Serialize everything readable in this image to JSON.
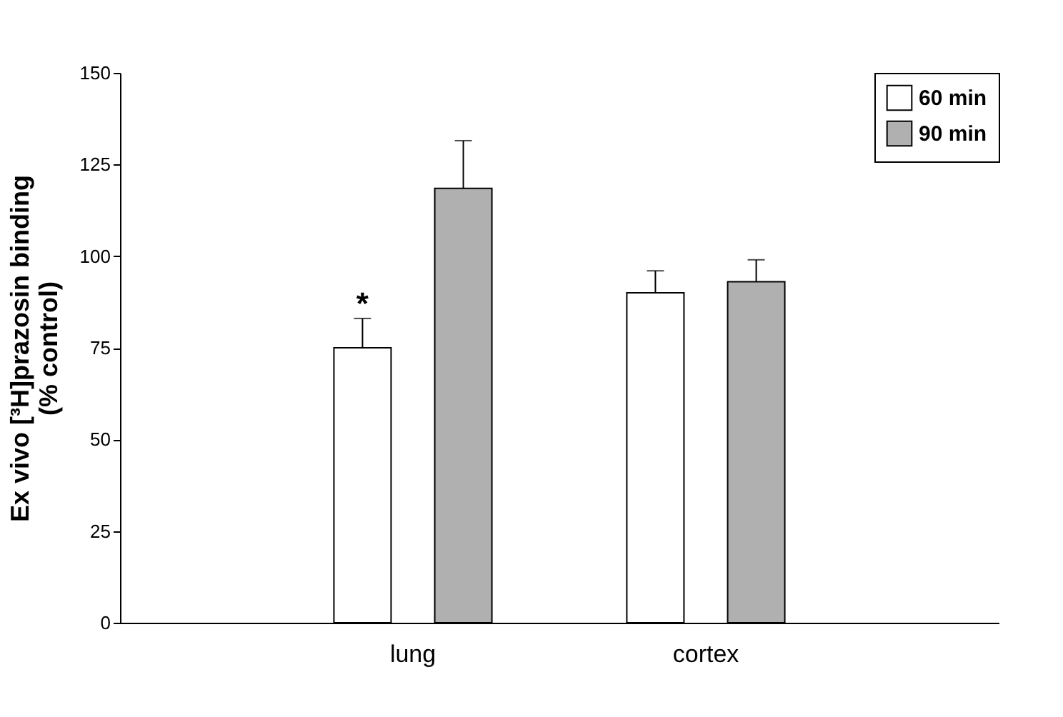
{
  "chart_data": {
    "type": "bar",
    "ylabel": "Ex vivo [³H]prazosin binding\n(% control)",
    "categories": [
      "lung",
      "cortex"
    ],
    "series": [
      {
        "name": "60 min",
        "color": "#ffffff",
        "values": [
          75,
          90
        ],
        "errors": [
          8,
          6
        ]
      },
      {
        "name": "90 min",
        "color": "#b0b0b0",
        "values": [
          118.5,
          93
        ],
        "errors": [
          13,
          6
        ]
      }
    ],
    "ylim": [
      0,
      150
    ],
    "yticks": [
      0,
      25,
      50,
      75,
      100,
      125,
      150
    ],
    "grid": false,
    "legend": "top right",
    "annotations": [
      "*"
    ]
  }
}
